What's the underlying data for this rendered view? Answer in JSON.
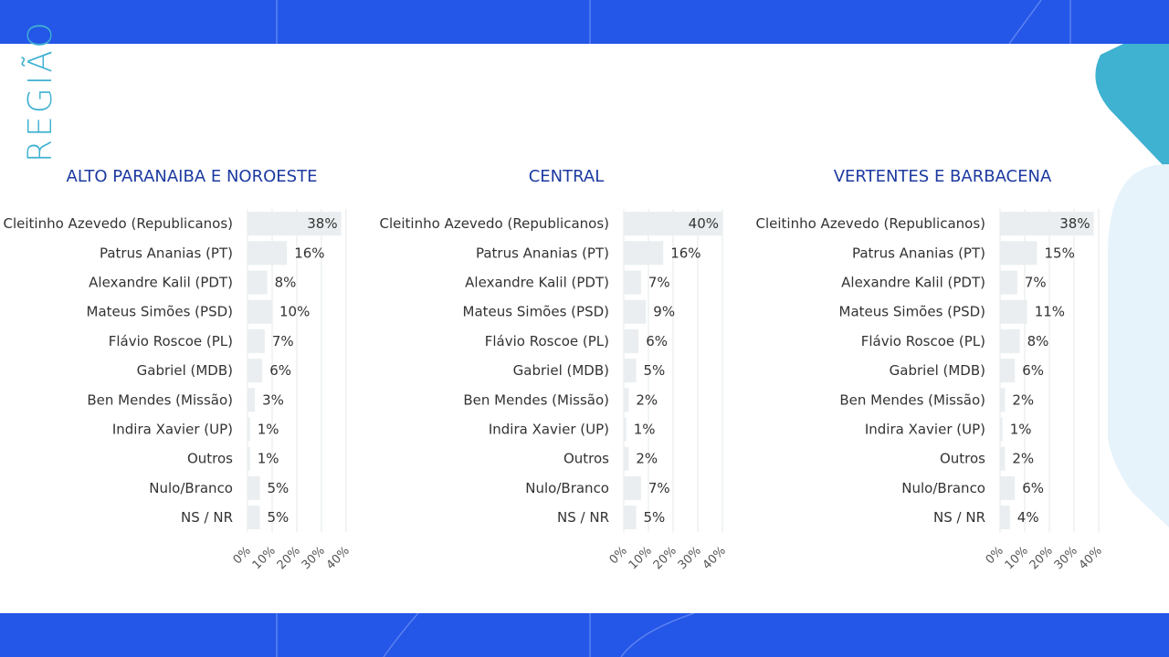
{
  "page": {
    "side_title": "REGIÃO"
  },
  "colors": {
    "band": "#2456e8",
    "accent": "#3fb1d1",
    "bar": "#eaeef0",
    "title": "#1c3aa0"
  },
  "chart_data": [
    {
      "type": "bar",
      "orientation": "horizontal",
      "title": "ALTO PARANAIBA E NOROESTE",
      "categories": [
        "Cleitinho Azevedo (Republicanos)",
        "Patrus Ananias (PT)",
        "Alexandre Kalil (PDT)",
        "Mateus Simões (PSD)",
        "Flávio Roscoe (PL)",
        "Gabriel (MDB)",
        "Ben Mendes (Missão)",
        "Indira Xavier (UP)",
        "Outros",
        "Nulo/Branco",
        "NS / NR"
      ],
      "values": [
        38,
        16,
        8,
        10,
        7,
        6,
        3,
        1,
        1,
        5,
        5
      ],
      "value_labels": [
        "38%",
        "16%",
        "8%",
        "10%",
        "7%",
        "6%",
        "3%",
        "1%",
        "1%",
        "5%",
        "5%"
      ],
      "xlim": [
        0,
        40
      ],
      "x_ticks": [
        "0%",
        "10%",
        "20%",
        "30%",
        "40%"
      ],
      "grid": true
    },
    {
      "type": "bar",
      "orientation": "horizontal",
      "title": "CENTRAL",
      "categories": [
        "Cleitinho Azevedo (Republicanos)",
        "Patrus Ananias (PT)",
        "Alexandre Kalil (PDT)",
        "Mateus Simões (PSD)",
        "Flávio Roscoe (PL)",
        "Gabriel (MDB)",
        "Ben Mendes (Missão)",
        "Indira Xavier (UP)",
        "Outros",
        "Nulo/Branco",
        "NS / NR"
      ],
      "values": [
        40,
        16,
        7,
        9,
        6,
        5,
        2,
        1,
        2,
        7,
        5
      ],
      "value_labels": [
        "40%",
        "16%",
        "7%",
        "9%",
        "6%",
        "5%",
        "2%",
        "1%",
        "2%",
        "7%",
        "5%"
      ],
      "xlim": [
        0,
        40
      ],
      "x_ticks": [
        "0%",
        "10%",
        "20%",
        "30%",
        "40%"
      ],
      "grid": true
    },
    {
      "type": "bar",
      "orientation": "horizontal",
      "title": "VERTENTES E BARBACENA",
      "categories": [
        "Cleitinho Azevedo (Republicanos)",
        "Patrus Ananias (PT)",
        "Alexandre Kalil (PDT)",
        "Mateus Simões (PSD)",
        "Flávio Roscoe (PL)",
        "Gabriel (MDB)",
        "Ben Mendes (Missão)",
        "Indira Xavier (UP)",
        "Outros",
        "Nulo/Branco",
        "NS / NR"
      ],
      "values": [
        38,
        15,
        7,
        11,
        8,
        6,
        2,
        1,
        2,
        6,
        4
      ],
      "value_labels": [
        "38%",
        "15%",
        "7%",
        "11%",
        "8%",
        "6%",
        "2%",
        "1%",
        "2%",
        "6%",
        "4%"
      ],
      "xlim": [
        0,
        40
      ],
      "x_ticks": [
        "0%",
        "10%",
        "20%",
        "30%",
        "40%"
      ],
      "grid": true
    }
  ]
}
